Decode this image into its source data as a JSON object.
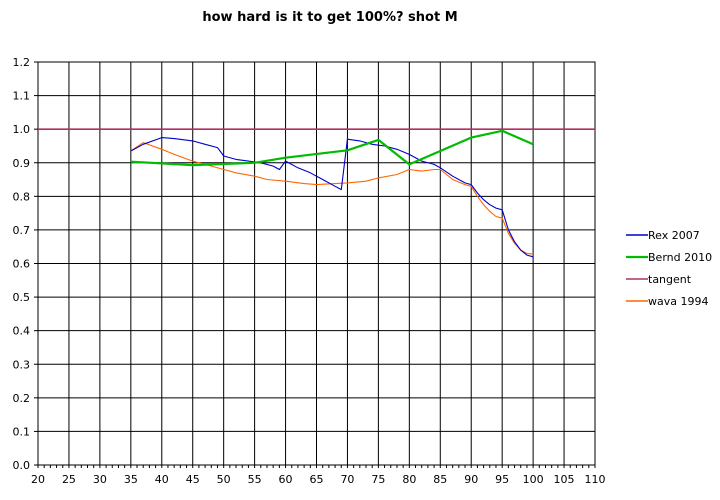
{
  "chart_data": {
    "type": "line",
    "title": "how hard is it to get 100%? shot M",
    "xlabel": "",
    "ylabel": "",
    "xlim": [
      20,
      110
    ],
    "ylim": [
      0,
      1.2
    ],
    "x_ticks": [
      20,
      25,
      30,
      35,
      40,
      45,
      50,
      55,
      60,
      65,
      70,
      75,
      80,
      85,
      90,
      95,
      100,
      105,
      110
    ],
    "y_ticks": [
      0.0,
      0.1,
      0.2,
      0.3,
      0.4,
      0.5,
      0.6,
      0.7,
      0.8,
      0.9,
      1.0,
      1.1,
      1.2
    ],
    "y_tick_labels": [
      "0.0",
      "0.1",
      "0.2",
      "0.3",
      "0.4",
      "0.5",
      "0.6",
      "0.7",
      "0.8",
      "0.9",
      "1.0",
      "1.1",
      "1.2"
    ],
    "grid": true,
    "legend_position": "right",
    "series": [
      {
        "name": "Rex 2007",
        "color": "#0000cc",
        "x": [
          35,
          37,
          40,
          42,
          45,
          47,
          49,
          50,
          52,
          54,
          56,
          58,
          59,
          60,
          62,
          64,
          66,
          68,
          69,
          70,
          72,
          74,
          76,
          78,
          80,
          82,
          84,
          85,
          87,
          89,
          90,
          91,
          92,
          93,
          94,
          95,
          96,
          97,
          98,
          99,
          100
        ],
        "y": [
          0.935,
          0.955,
          0.975,
          0.972,
          0.965,
          0.955,
          0.945,
          0.92,
          0.91,
          0.905,
          0.9,
          0.89,
          0.88,
          0.905,
          0.885,
          0.87,
          0.85,
          0.83,
          0.82,
          0.97,
          0.965,
          0.955,
          0.95,
          0.94,
          0.925,
          0.905,
          0.895,
          0.885,
          0.86,
          0.84,
          0.835,
          0.81,
          0.79,
          0.775,
          0.765,
          0.76,
          0.7,
          0.665,
          0.64,
          0.625,
          0.62
        ]
      },
      {
        "name": "Bernd 2010",
        "color": "#00bb00",
        "x": [
          35,
          45,
          55,
          60,
          70,
          75,
          80,
          85,
          90,
          95,
          100
        ],
        "y": [
          0.903,
          0.893,
          0.9,
          0.915,
          0.937,
          0.968,
          0.895,
          0.935,
          0.975,
          0.995,
          0.955
        ]
      },
      {
        "name": "tangent",
        "color": "#b03060",
        "x": [
          20,
          110
        ],
        "y": [
          1.0,
          1.0
        ]
      },
      {
        "name": "wava 1994",
        "color": "#ff6600",
        "x": [
          35,
          37,
          40,
          42,
          45,
          47,
          50,
          52,
          55,
          57,
          60,
          63,
          65,
          68,
          70,
          73,
          75,
          78,
          80,
          82,
          84,
          85,
          87,
          89,
          90,
          91,
          92,
          93,
          94,
          95,
          96,
          97,
          98,
          99,
          100
        ],
        "y": [
          0.935,
          0.96,
          0.94,
          0.925,
          0.905,
          0.895,
          0.88,
          0.87,
          0.86,
          0.85,
          0.845,
          0.838,
          0.835,
          0.838,
          0.84,
          0.845,
          0.855,
          0.865,
          0.88,
          0.875,
          0.88,
          0.88,
          0.85,
          0.835,
          0.83,
          0.8,
          0.775,
          0.755,
          0.74,
          0.735,
          0.69,
          0.66,
          0.64,
          0.63,
          0.628
        ]
      }
    ]
  }
}
